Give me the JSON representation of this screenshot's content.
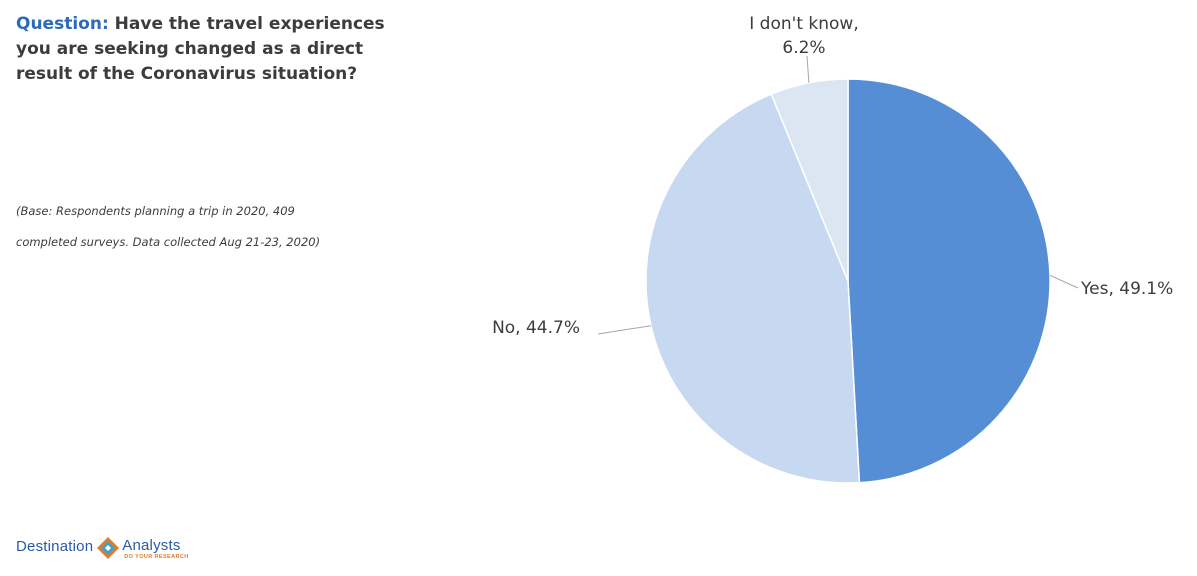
{
  "question": {
    "label": "Question:",
    "text": " Have the travel experiences you are seeking changed as a direct result of the Coronavirus situation?"
  },
  "base_note": {
    "line1": "(Base: Respondents planning a trip in 2020, 409",
    "line2": "completed surveys. Data collected Aug 21-23, 2020)"
  },
  "chart_data": {
    "type": "pie",
    "title": "",
    "start_angle_deg": 0,
    "direction": "clockwise",
    "slices": [
      {
        "label": "Yes",
        "value": 49.1,
        "display": "Yes, 49.1%",
        "color": "#558ed5"
      },
      {
        "label": "No",
        "value": 44.7,
        "display": "No, 44.7%",
        "color": "#c6d9f1"
      },
      {
        "label": "I don't know",
        "value": 6.2,
        "display_line1": "I don't know,",
        "display_line2": "6.2%",
        "color": "#dce6f2"
      }
    ],
    "leader_line_color": "#a6a6a6"
  },
  "logo": {
    "word1": "Destination",
    "word2": "Analysts",
    "tagline": "DO YOUR RESEARCH",
    "colors": {
      "blue": "#2b5aa6",
      "orange": "#e07b2a",
      "teal": "#3fa3c9"
    }
  }
}
